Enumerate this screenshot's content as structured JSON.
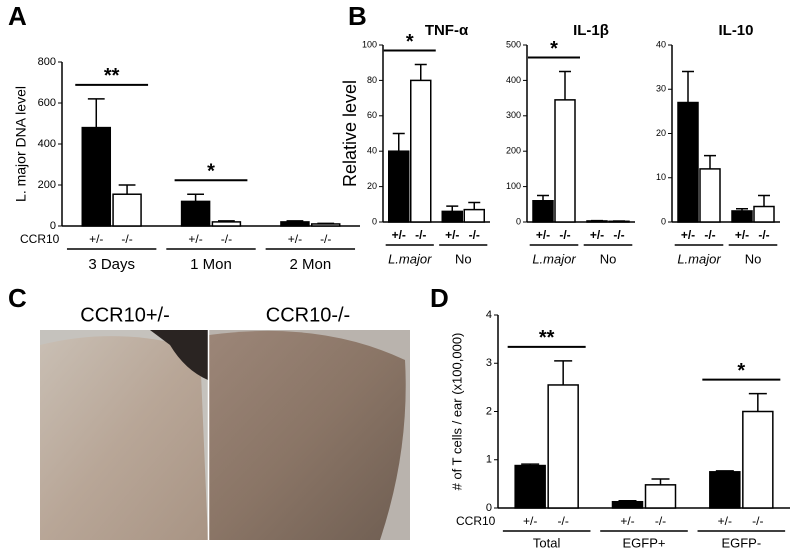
{
  "chart_data": [
    {
      "type": "bar",
      "panel": "A",
      "ylabel": "L. major DNA level",
      "group_label": "CCR10",
      "categories": [
        "3 Days",
        "1 Mon",
        "2 Mon"
      ],
      "series": [
        {
          "name": "+/-",
          "color": "#000000",
          "values": [
            480,
            120,
            20
          ],
          "errors": [
            140,
            35,
            5
          ]
        },
        {
          "name": "-/-",
          "color": "#ffffff",
          "values": [
            155,
            20,
            10
          ],
          "errors": [
            45,
            5,
            3
          ]
        }
      ],
      "annotations": [
        "**",
        "*",
        null
      ],
      "ylim": [
        0,
        800
      ],
      "yticks": [
        0,
        200,
        400,
        600,
        800
      ]
    },
    {
      "type": "bar",
      "panel": "B",
      "title": "TNF-α",
      "ylabel": "Relative level",
      "categories": [
        "L.major",
        "No"
      ],
      "series": [
        {
          "name": "+/-",
          "color": "#000000",
          "values": [
            40,
            6
          ],
          "errors": [
            10,
            3
          ]
        },
        {
          "name": "-/-",
          "color": "#ffffff",
          "values": [
            80,
            7
          ],
          "errors": [
            9,
            4
          ]
        }
      ],
      "annotations": [
        "*",
        null
      ],
      "ylim": [
        0,
        100
      ],
      "yticks": [
        0,
        20,
        40,
        60,
        80,
        100
      ]
    },
    {
      "type": "bar",
      "title": "IL-1β",
      "categories": [
        "L.major",
        "No"
      ],
      "series": [
        {
          "name": "+/-",
          "color": "#000000",
          "values": [
            60,
            3
          ],
          "errors": [
            15,
            1
          ]
        },
        {
          "name": "-/-",
          "color": "#ffffff",
          "values": [
            345,
            2
          ],
          "errors": [
            80,
            1
          ]
        }
      ],
      "annotations": [
        "*",
        null
      ],
      "ylim": [
        0,
        500
      ],
      "yticks": [
        0,
        100,
        200,
        300,
        400,
        500
      ]
    },
    {
      "type": "bar",
      "title": "IL-10",
      "categories": [
        "L.major",
        "No"
      ],
      "series": [
        {
          "name": "+/-",
          "color": "#000000",
          "values": [
            27,
            2.5
          ],
          "errors": [
            7,
            0.5
          ]
        },
        {
          "name": "-/-",
          "color": "#ffffff",
          "values": [
            12,
            3.5
          ],
          "errors": [
            3,
            2.5
          ]
        }
      ],
      "annotations": [
        null,
        null
      ],
      "ylim": [
        0,
        40
      ],
      "yticks": [
        0,
        10,
        20,
        30,
        40
      ]
    },
    {
      "type": "bar",
      "panel": "D",
      "ylabel": "# of T cells / ear (x100,000)",
      "group_label": "CCR10",
      "categories": [
        "Total",
        "EGFP+",
        "EGFP-"
      ],
      "series": [
        {
          "name": "+/-",
          "color": "#000000",
          "values": [
            0.88,
            0.13,
            0.75
          ],
          "errors": [
            0.03,
            0.02,
            0.02
          ]
        },
        {
          "name": "-/-",
          "color": "#ffffff",
          "values": [
            2.55,
            0.48,
            2.0
          ],
          "errors": [
            0.5,
            0.12,
            0.37
          ]
        }
      ],
      "annotations": [
        "**",
        null,
        "*"
      ],
      "ylim": [
        0,
        4
      ],
      "yticks": [
        0,
        1,
        2,
        3,
        4
      ]
    }
  ],
  "photo": {
    "panel": "C",
    "labels": [
      "CCR10+/-",
      "CCR10-/-"
    ]
  }
}
